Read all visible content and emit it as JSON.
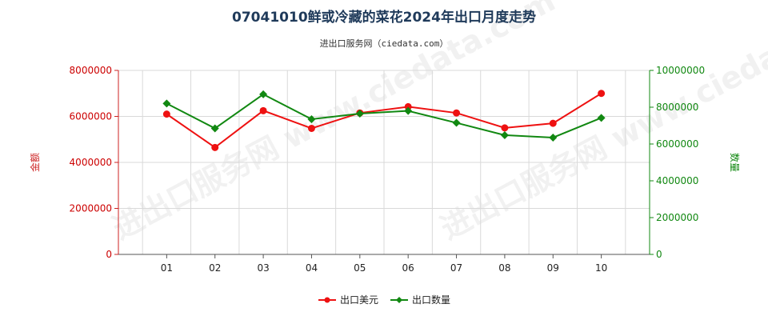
{
  "chart_data": {
    "type": "line",
    "title": "07041010鲜或冷藏的菜花2024年出口月度走势",
    "subtitle": "进出口服务网（ciedata.com）",
    "watermark": "进出口服务网 www.ciedata.com",
    "categories": [
      "01",
      "02",
      "03",
      "04",
      "05",
      "06",
      "07",
      "08",
      "09",
      "10"
    ],
    "ylabel_left": "金额",
    "ylabel_right": "数量",
    "ylim_left": [
      0,
      8000000
    ],
    "ylim_right": [
      0,
      10000000
    ],
    "yticks_left": [
      "0",
      "2000000",
      "4000000",
      "6000000",
      "8000000"
    ],
    "yticks_right": [
      "0",
      "2000000",
      "4000000",
      "6000000",
      "8000000",
      "10000000"
    ],
    "grid": true,
    "legend_position": "bottom",
    "series": [
      {
        "name": "出口美元",
        "axis": "left",
        "color": "#ee1111",
        "values": [
          6100000,
          4650000,
          6250000,
          5480000,
          6150000,
          6420000,
          6150000,
          5500000,
          5700000,
          7000000
        ]
      },
      {
        "name": "出口数量",
        "axis": "right",
        "color": "#118811",
        "values": [
          8200000,
          6850000,
          8700000,
          7350000,
          7650000,
          7800000,
          7150000,
          6480000,
          6350000,
          7420000
        ]
      }
    ]
  }
}
